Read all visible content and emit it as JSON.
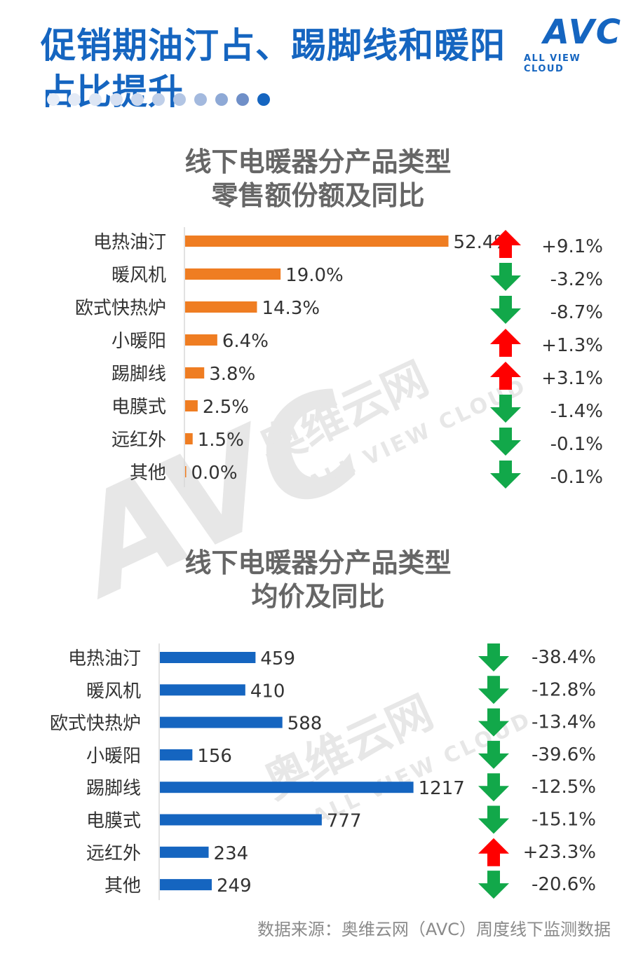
{
  "header": {
    "headline": "促销期油汀占、踢脚线和暖阳占比提升",
    "logo_text": "AVC",
    "logo_subtext": "ALL VIEW CLOUD"
  },
  "watermark": {
    "cn": "奥维云网",
    "en": "ALL VIEW CLOUD",
    "logo": "AVC"
  },
  "colors": {
    "accent": "#1565c0",
    "share_bar": "#ef7d22",
    "price_bar": "#1565c0",
    "up": "#ff0000",
    "down": "#12a84a"
  },
  "icons": {
    "up": "red-up-arrow-icon",
    "down": "green-down-arrow-icon"
  },
  "chart_data": [
    {
      "type": "bar",
      "orientation": "horizontal",
      "title_line1": "线下电暖器分产品类型",
      "title_line2": "零售额份额及同比",
      "categories": [
        "电热油汀",
        "暖风机",
        "欧式快热炉",
        "小暖阳",
        "踢脚线",
        "电膜式",
        "远红外",
        "其他"
      ],
      "values": [
        52.4,
        19.0,
        14.3,
        6.4,
        3.8,
        2.5,
        1.5,
        0.0
      ],
      "value_labels": [
        "52.4%",
        "19.0%",
        "14.3%",
        "6.4%",
        "3.8%",
        "2.5%",
        "1.5%",
        "0.0%"
      ],
      "yoy_labels": [
        "+9.1%",
        "-3.2%",
        "-8.7%",
        "+1.3%",
        "+3.1%",
        "-1.4%",
        "-0.1%",
        "-0.1%"
      ],
      "yoy_direction": [
        "up",
        "down",
        "down",
        "up",
        "up",
        "down",
        "down",
        "down"
      ],
      "xlim": [
        0,
        60
      ],
      "grid": false
    },
    {
      "type": "bar",
      "orientation": "horizontal",
      "title_line1": "线下电暖器分产品类型",
      "title_line2": "均价及同比",
      "categories": [
        "电热油汀",
        "暖风机",
        "欧式快热炉",
        "小暖阳",
        "踢脚线",
        "电膜式",
        "远红外",
        "其他"
      ],
      "values": [
        459,
        410,
        588,
        156,
        1217,
        777,
        234,
        249
      ],
      "value_labels": [
        "459",
        "410",
        "588",
        "156",
        "1217",
        "777",
        "234",
        "249"
      ],
      "yoy_labels": [
        "-38.4%",
        "-12.8%",
        "-13.4%",
        "-39.6%",
        "-12.5%",
        "-15.1%",
        "+23.3%",
        "-20.6%"
      ],
      "yoy_direction": [
        "down",
        "down",
        "down",
        "down",
        "down",
        "down",
        "up",
        "down"
      ],
      "xlim": [
        0,
        1400
      ],
      "grid": false
    }
  ],
  "footer": {
    "source": "数据来源：奥维云网（AVC）周度线下监测数据"
  }
}
